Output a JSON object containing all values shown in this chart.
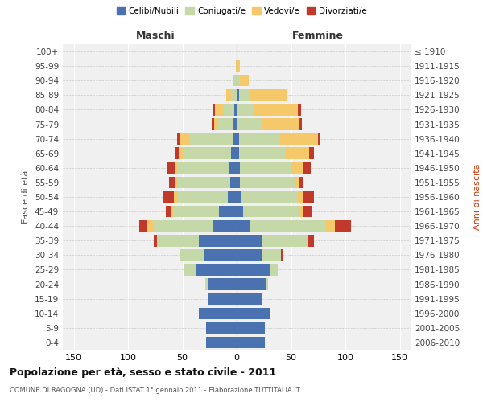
{
  "age_groups": [
    "0-4",
    "5-9",
    "10-14",
    "15-19",
    "20-24",
    "25-29",
    "30-34",
    "35-39",
    "40-44",
    "45-49",
    "50-54",
    "55-59",
    "60-64",
    "65-69",
    "70-74",
    "75-79",
    "80-84",
    "85-89",
    "90-94",
    "95-99",
    "100+"
  ],
  "birth_years": [
    "2006-2010",
    "2001-2005",
    "1996-2000",
    "1991-1995",
    "1986-1990",
    "1981-1985",
    "1976-1980",
    "1971-1975",
    "1966-1970",
    "1961-1965",
    "1956-1960",
    "1951-1955",
    "1946-1950",
    "1941-1945",
    "1936-1940",
    "1931-1935",
    "1926-1930",
    "1921-1925",
    "1916-1920",
    "1911-1915",
    "≤ 1910"
  ],
  "male": {
    "celibi": [
      28,
      28,
      35,
      27,
      27,
      38,
      30,
      35,
      22,
      16,
      8,
      6,
      7,
      5,
      4,
      3,
      2,
      0,
      0,
      0,
      0
    ],
    "coniugati": [
      0,
      0,
      0,
      0,
      2,
      10,
      22,
      38,
      55,
      42,
      47,
      48,
      47,
      45,
      40,
      15,
      10,
      5,
      2,
      0,
      0
    ],
    "vedovi": [
      0,
      0,
      0,
      0,
      0,
      0,
      0,
      0,
      5,
      2,
      3,
      3,
      3,
      3,
      8,
      3,
      8,
      5,
      2,
      1,
      0
    ],
    "divorziati": [
      0,
      0,
      0,
      0,
      0,
      0,
      0,
      3,
      8,
      5,
      10,
      5,
      7,
      4,
      3,
      2,
      2,
      0,
      0,
      0,
      0
    ]
  },
  "female": {
    "nubili": [
      26,
      26,
      30,
      23,
      27,
      30,
      23,
      23,
      12,
      6,
      4,
      3,
      3,
      2,
      2,
      1,
      1,
      2,
      0,
      0,
      0
    ],
    "coniugate": [
      0,
      0,
      0,
      0,
      2,
      8,
      18,
      43,
      70,
      52,
      52,
      50,
      48,
      43,
      38,
      22,
      15,
      10,
      3,
      1,
      0
    ],
    "vedove": [
      0,
      0,
      0,
      0,
      0,
      0,
      0,
      0,
      8,
      3,
      5,
      5,
      10,
      22,
      35,
      35,
      40,
      35,
      8,
      2,
      0
    ],
    "divorziate": [
      0,
      0,
      0,
      0,
      0,
      0,
      2,
      5,
      15,
      8,
      10,
      3,
      7,
      4,
      2,
      2,
      3,
      0,
      0,
      0,
      0
    ]
  },
  "colors": {
    "celibi": "#4a72b0",
    "coniugati": "#c5d9a8",
    "vedovi": "#f5c96a",
    "divorziati": "#c0392b"
  },
  "title": "Popolazione per età, sesso e stato civile - 2011",
  "subtitle": "COMUNE DI RAGOGNA (UD) - Dati ISTAT 1° gennaio 2011 - Elaborazione TUTTITALIA.IT",
  "xlabel_maschi": "Maschi",
  "xlabel_femmine": "Femmine",
  "ylabel_left": "Fasce di età",
  "ylabel_right": "Anni di nascita",
  "xlim": 160,
  "background": "#ffffff",
  "plot_bg": "#f0f0f0",
  "legend_labels": [
    "Celibi/Nubili",
    "Coniugati/e",
    "Vedovi/e",
    "Divorziati/e"
  ]
}
